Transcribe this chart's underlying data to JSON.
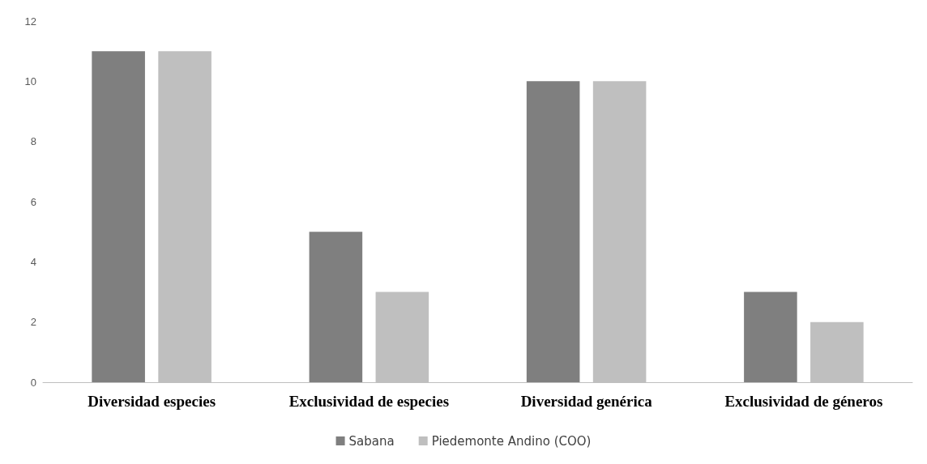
{
  "chart_data": {
    "type": "bar",
    "categories": [
      "Diversidad especies",
      "Exclusividad de especies",
      "Diversidad genérica",
      "Exclusividad de géneros"
    ],
    "series": [
      {
        "name": "Sabana",
        "color": "#7f7f7f",
        "values": [
          11,
          5,
          10,
          3
        ]
      },
      {
        "name": "Piedemonte Andino (COO)",
        "color": "#bfbfbf",
        "values": [
          11,
          3,
          10,
          2
        ]
      }
    ],
    "ylim": [
      0,
      12
    ],
    "yticks": [
      0,
      2,
      4,
      6,
      8,
      10,
      12
    ],
    "grid": false,
    "legend": "bottom"
  }
}
